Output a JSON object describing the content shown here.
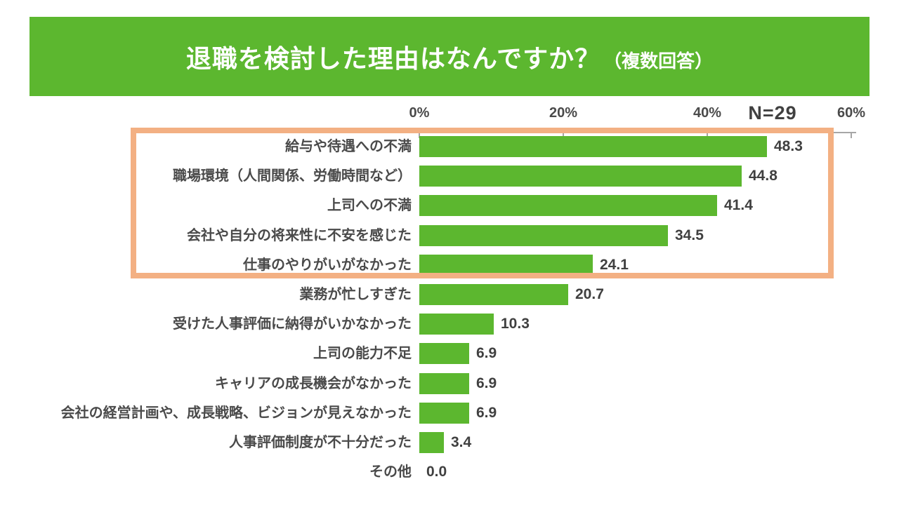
{
  "banner": {
    "title_main": "退職を検討した理由はなんですか？",
    "title_suffix": "（複数回答）"
  },
  "sample_size_label": "N=29",
  "axis_tick_labels": [
    "0%",
    "20%",
    "40%",
    "60%"
  ],
  "chart_data": {
    "type": "bar",
    "orientation": "horizontal",
    "title": "退職を検討した理由はなんですか？（複数回答）",
    "sample_size": "N=29",
    "categories": [
      "給与や待遇への不満",
      "職場環境（人間関係、労働時間など）",
      "上司への不満",
      "会社や自分の将来性に不安を感じた",
      "仕事のやりがいがなかった",
      "業務が忙しすぎた",
      "受けた人事評価に納得がいかなかった",
      "上司の能力不足",
      "キャリアの成長機会がなかった",
      "会社の経営計画や、成長戦略、ビジョンが見えなかった",
      "人事評価制度が不十分だった",
      "その他"
    ],
    "values": [
      48.3,
      44.8,
      41.4,
      34.5,
      24.1,
      20.7,
      10.3,
      6.9,
      6.9,
      6.9,
      3.4,
      0.0
    ],
    "xlabel": "",
    "ylabel": "",
    "xlim": [
      0,
      60
    ],
    "x_ticks_percent": [
      0,
      20,
      40,
      60
    ],
    "highlighted_top_n": 5,
    "legend": "none",
    "grid": false
  },
  "colors": {
    "banner_background": "#5cb72f",
    "bar_fill": "#5cb72f",
    "highlight_border": "#f3b083",
    "label_text": "#4a4a4a",
    "title_text": "#ffffff",
    "axis_line": "#a6a6a6"
  }
}
